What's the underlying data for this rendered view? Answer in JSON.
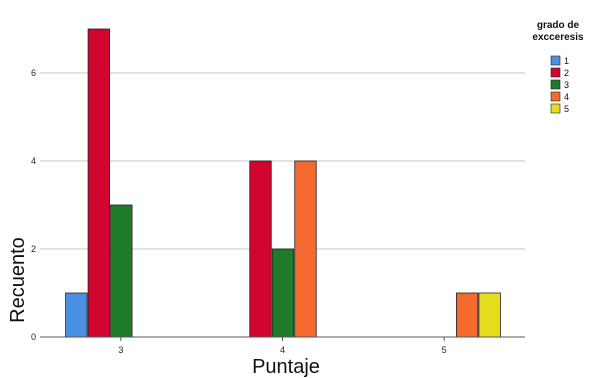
{
  "chart_data": {
    "type": "bar",
    "title": "",
    "xlabel": "Puntaje",
    "ylabel": "Recuento",
    "categories": [
      "3",
      "4",
      "5"
    ],
    "ylim": [
      0,
      7.5
    ],
    "yticks": [
      0,
      2,
      4,
      6
    ],
    "grid": true,
    "legend": {
      "title_lines": [
        "grado de",
        "excceresis"
      ],
      "position": "top-right"
    },
    "series": [
      {
        "name": "1",
        "color": "#4a90e2",
        "values": [
          1,
          0,
          0
        ]
      },
      {
        "name": "2",
        "color": "#d1052f",
        "values": [
          7,
          4,
          0
        ]
      },
      {
        "name": "3",
        "color": "#1f7a2a",
        "values": [
          3,
          2,
          0
        ]
      },
      {
        "name": "4",
        "color": "#f26a2e",
        "values": [
          0,
          4,
          1
        ]
      },
      {
        "name": "5",
        "color": "#e6dd1d",
        "values": [
          0,
          0,
          1
        ]
      }
    ]
  }
}
